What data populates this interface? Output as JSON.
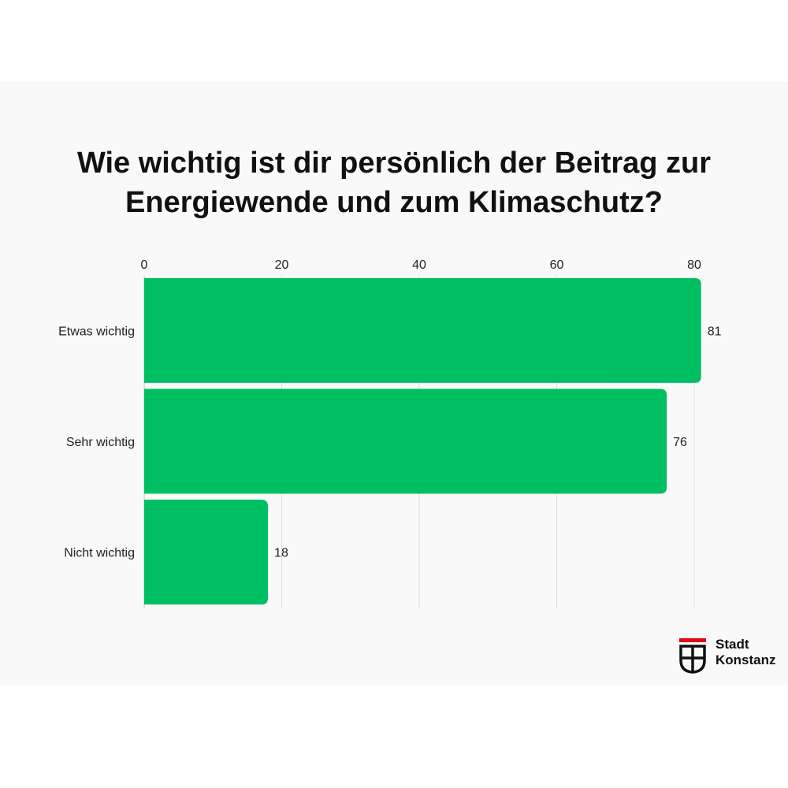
{
  "title_lines": [
    "Wie wichtig ist dir persönlich der Beitrag zur",
    "Energiewende und zum Klimaschutz?"
  ],
  "chart_data": {
    "type": "bar",
    "orientation": "horizontal",
    "title": "Wie wichtig ist dir persönlich der Beitrag zur Energiewende und zum Klimaschutz?",
    "categories": [
      "Etwas wichtig",
      "Sehr wichtig",
      "Nicht wichtig"
    ],
    "values": [
      81,
      76,
      18
    ],
    "xlim": [
      0,
      80
    ],
    "xticks": [
      0,
      20,
      40,
      60,
      80
    ],
    "xtick_position": "top",
    "grid": true,
    "bar_color": "#00be62",
    "data_labels": true
  },
  "logo": {
    "line1": "Stadt",
    "line2": "Konstanz",
    "accent_color": "#e30613"
  }
}
